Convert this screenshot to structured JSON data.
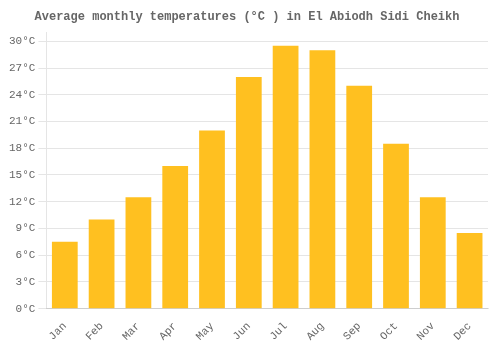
{
  "chart_data": {
    "type": "bar",
    "title": "Average monthly temperatures (°C ) in El Abiodh Sidi Cheikh",
    "categories": [
      "Jan",
      "Feb",
      "Mar",
      "Apr",
      "May",
      "Jun",
      "Jul",
      "Aug",
      "Sep",
      "Oct",
      "Nov",
      "Dec"
    ],
    "values": [
      7.5,
      10.0,
      12.5,
      16.0,
      20.0,
      26.0,
      29.5,
      29.0,
      25.0,
      18.5,
      12.5,
      8.5
    ],
    "color": "#FFC020",
    "ylim": [
      0,
      31
    ],
    "yticks": [
      {
        "value": 0,
        "label": "0°C"
      },
      {
        "value": 3,
        "label": "3°C"
      },
      {
        "value": 6,
        "label": "6°C"
      },
      {
        "value": 9,
        "label": "9°C"
      },
      {
        "value": 12,
        "label": "12°C"
      },
      {
        "value": 15,
        "label": "15°C"
      },
      {
        "value": 18,
        "label": "18°C"
      },
      {
        "value": 21,
        "label": "21°C"
      },
      {
        "value": 24,
        "label": "24°C"
      },
      {
        "value": 27,
        "label": "27°C"
      },
      {
        "value": 30,
        "label": "30°C"
      }
    ],
    "grid": true
  }
}
